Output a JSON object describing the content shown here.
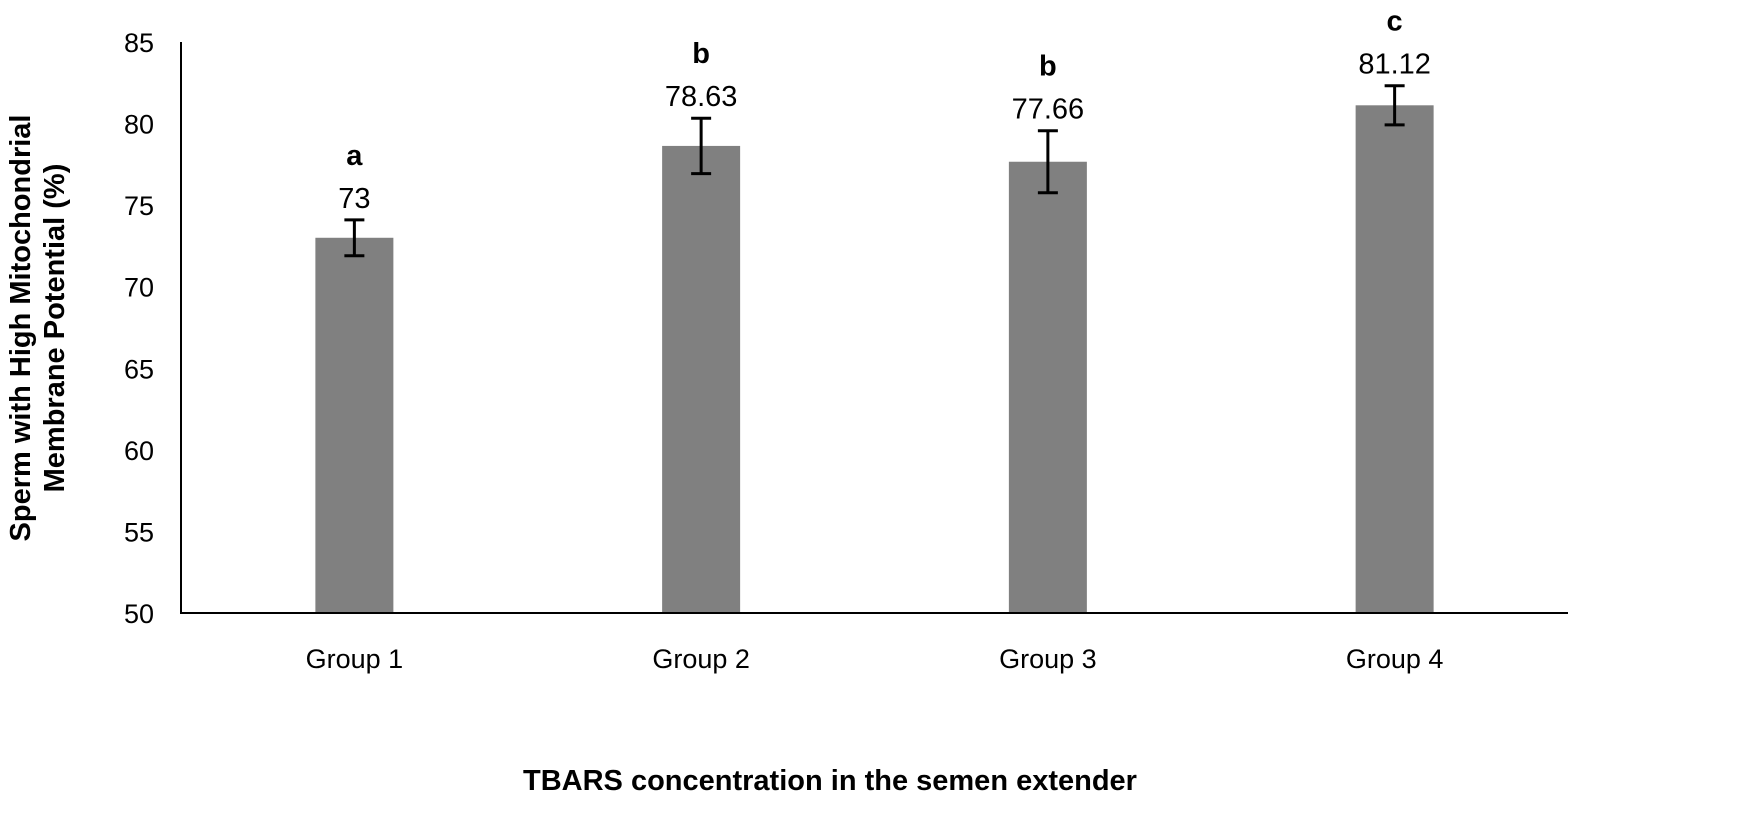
{
  "chart_data": {
    "type": "bar",
    "title": "",
    "xlabel": "TBARS concentration in the semen extender",
    "ylabel_lines": [
      "Sperm with High Mitochondrial",
      "Membrane Potential (%)"
    ],
    "ylabel": "Sperm with High Mitochondrial Membrane Potential (%)",
    "categories": [
      "Group 1",
      "Group 2",
      "Group 3",
      "Group 4"
    ],
    "values": [
      73,
      78.63,
      77.66,
      81.12
    ],
    "value_labels": [
      "73",
      "78.63",
      "77.66",
      "81.12"
    ],
    "error": [
      1.1,
      1.7,
      1.9,
      1.2
    ],
    "significance_letters": [
      "a",
      "b",
      "b",
      "c"
    ],
    "ylim": [
      50,
      85
    ],
    "yticks": [
      50,
      55,
      60,
      65,
      70,
      75,
      80,
      85
    ],
    "grid": false,
    "bar_color": "#808080"
  }
}
